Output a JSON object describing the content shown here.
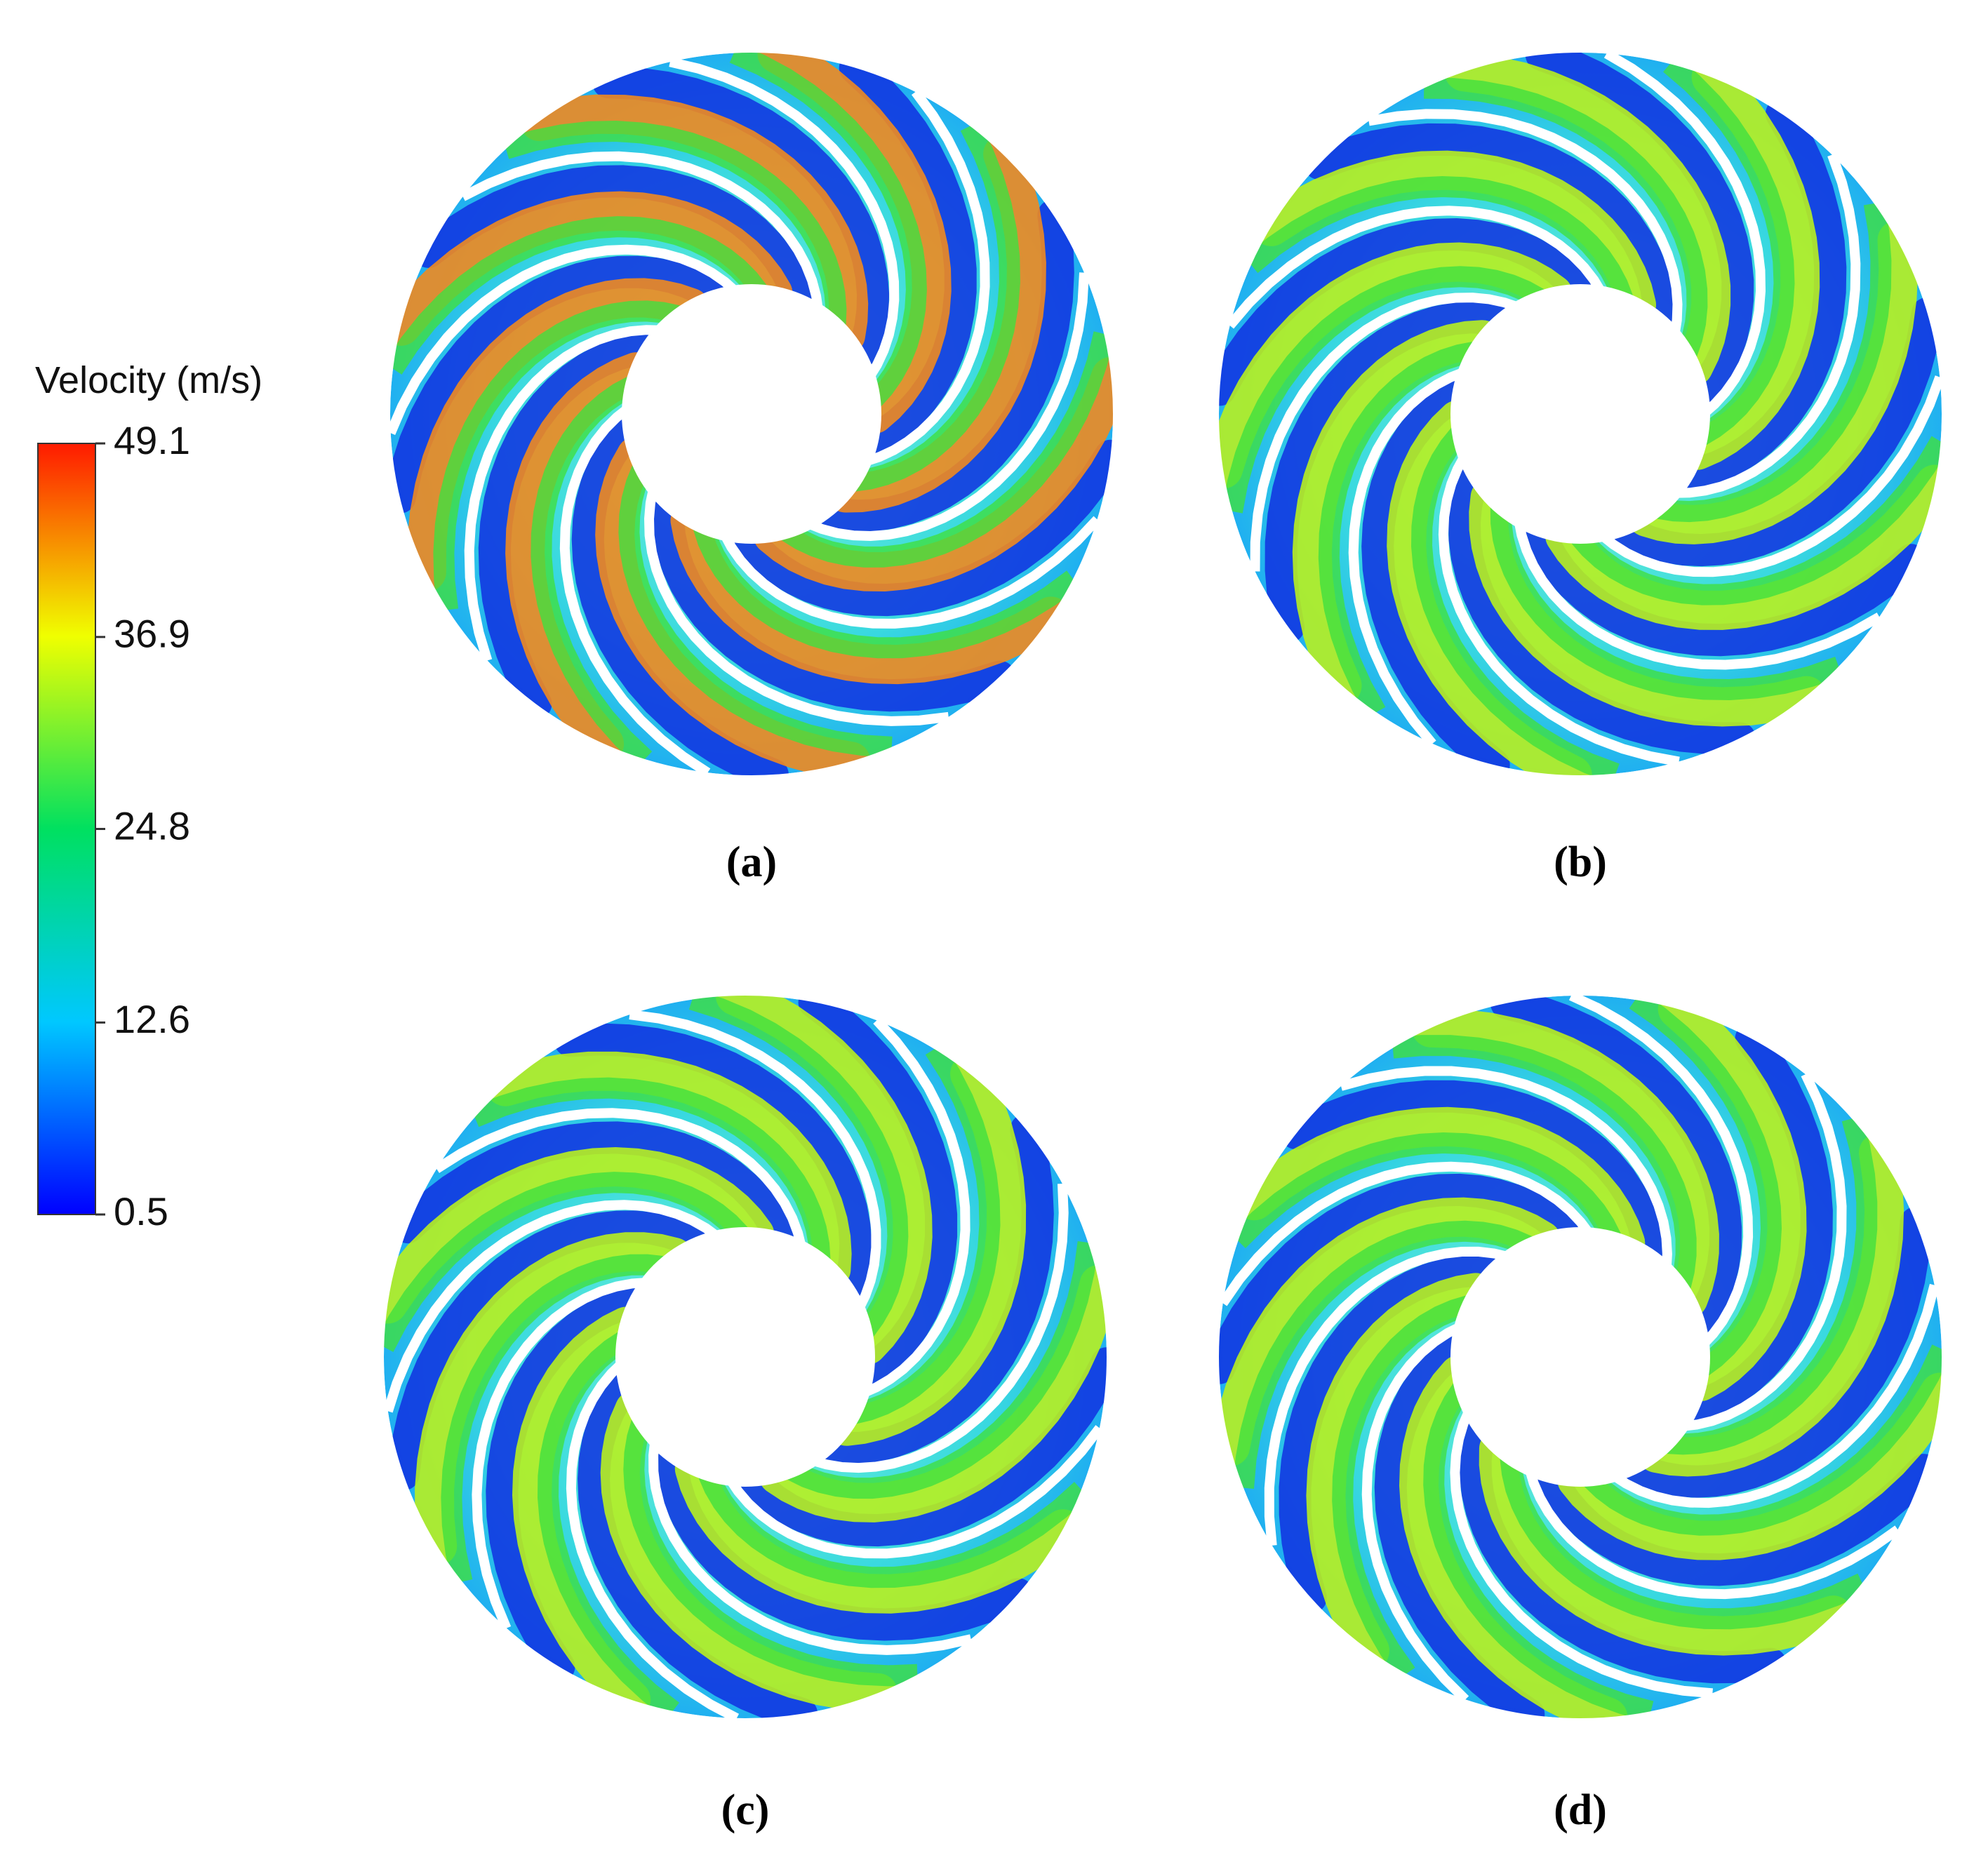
{
  "colorbar": {
    "title": "Velocity (m/s)",
    "lim": [
      0.5,
      49.1
    ],
    "ticks": [
      0.5,
      12.6,
      24.8,
      36.9,
      49.1
    ]
  },
  "panels": [
    {
      "label": "(a)"
    },
    {
      "label": "(b)"
    },
    {
      "label": "(c)"
    },
    {
      "label": "(d)"
    }
  ]
}
